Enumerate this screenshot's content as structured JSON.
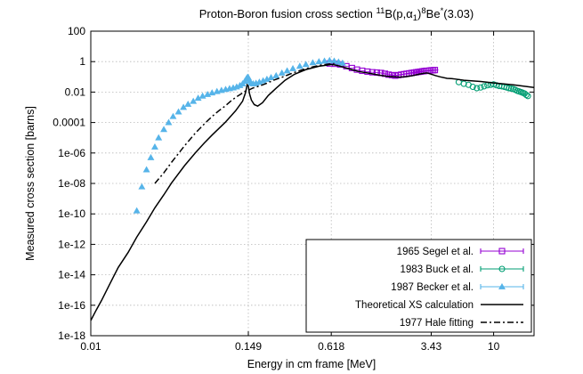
{
  "chart_data": {
    "type": "scatter",
    "title": {
      "prefix": "Proton-Boron fusion cross section ",
      "mass_number": "11",
      "reaction": "B(p,",
      "alpha": "α",
      "alpha_sub": "1",
      "close": ")",
      "product_mass": "8",
      "product": "Be",
      "excited": "*",
      "energy": "(3.03)"
    },
    "xlabel": "Energy in cm frame [MeV]",
    "ylabel": "Measured cross section [barns]",
    "xscale": "log",
    "yscale": "log",
    "xlim": [
      0.01,
      20
    ],
    "ylim": [
      1e-18,
      100
    ],
    "x_ticks": [
      {
        "value": 0.01,
        "label": "0.01"
      },
      {
        "value": 0.149,
        "label": "0.149"
      },
      {
        "value": 0.618,
        "label": "0.618"
      },
      {
        "value": 3.43,
        "label": "3.43"
      },
      {
        "value": 10,
        "label": "10"
      }
    ],
    "y_ticks": [
      {
        "value": 1e-18,
        "label": "1e-18"
      },
      {
        "value": 1e-16,
        "label": "1e-16"
      },
      {
        "value": 1e-14,
        "label": "1e-14"
      },
      {
        "value": 1e-12,
        "label": "1e-12"
      },
      {
        "value": 1e-10,
        "label": "1e-10"
      },
      {
        "value": 1e-08,
        "label": "1e-08"
      },
      {
        "value": 1e-06,
        "label": "1e-06"
      },
      {
        "value": 0.0001,
        "label": "0.0001"
      },
      {
        "value": 0.01,
        "label": "0.01"
      },
      {
        "value": 1,
        "label": "1"
      },
      {
        "value": 100,
        "label": "100"
      }
    ],
    "grid": true,
    "legend_position": "bottom-right",
    "series": [
      {
        "name": "1965 Segel et al.",
        "kind": "markers",
        "marker": "square",
        "color": "#9400d3",
        "x": [
          0.6,
          0.66,
          0.72,
          0.8,
          0.88,
          0.96,
          1.05,
          1.15,
          1.25,
          1.35,
          1.45,
          1.55,
          1.65,
          1.75,
          1.85,
          1.95,
          2.05,
          2.15,
          2.25,
          2.35,
          2.45,
          2.55,
          2.65,
          2.75,
          2.85,
          2.95,
          3.05,
          3.15,
          3.25,
          3.35,
          3.45,
          3.55,
          3.65
        ],
        "y": [
          0.75,
          0.72,
          0.65,
          0.5,
          0.38,
          0.3,
          0.25,
          0.22,
          0.2,
          0.19,
          0.18,
          0.16,
          0.14,
          0.13,
          0.12,
          0.13,
          0.14,
          0.15,
          0.16,
          0.17,
          0.18,
          0.19,
          0.2,
          0.21,
          0.22,
          0.23,
          0.24,
          0.25,
          0.25,
          0.26,
          0.27,
          0.27,
          0.28
        ]
      },
      {
        "name": "1983 Buck et al.",
        "kind": "markers",
        "marker": "circle",
        "color": "#009e73",
        "x": [
          5.5,
          6.0,
          6.5,
          7.0,
          7.5,
          8.0,
          8.5,
          9.0,
          9.5,
          10.0,
          10.5,
          11.0,
          11.5,
          12.0,
          12.5,
          13.0,
          13.5,
          14.0,
          14.5,
          15.0,
          15.5,
          16.0,
          16.5,
          17.0,
          17.5,
          18.0
        ],
        "y": [
          0.045,
          0.035,
          0.03,
          0.022,
          0.018,
          0.02,
          0.024,
          0.028,
          0.03,
          0.032,
          0.028,
          0.025,
          0.024,
          0.022,
          0.02,
          0.018,
          0.017,
          0.016,
          0.014,
          0.012,
          0.011,
          0.01,
          0.009,
          0.008,
          0.0065,
          0.0055
        ]
      },
      {
        "name": "1987 Becker et al.",
        "kind": "markers",
        "marker": "triangle",
        "color": "#56b4e9",
        "x": [
          0.022,
          0.024,
          0.026,
          0.028,
          0.03,
          0.032,
          0.035,
          0.038,
          0.041,
          0.045,
          0.049,
          0.053,
          0.058,
          0.063,
          0.068,
          0.074,
          0.08,
          0.087,
          0.094,
          0.101,
          0.108,
          0.115,
          0.122,
          0.129,
          0.135,
          0.14,
          0.144,
          0.147,
          0.149,
          0.152,
          0.156,
          0.162,
          0.17,
          0.18,
          0.192,
          0.205,
          0.22,
          0.24,
          0.265,
          0.29,
          0.32,
          0.36,
          0.4,
          0.45,
          0.5,
          0.55,
          0.6,
          0.65,
          0.7,
          0.75
        ],
        "y": [
          1.6e-10,
          6e-09,
          8e-08,
          5e-07,
          2.5e-06,
          1e-05,
          3.5e-05,
          0.0001,
          0.00025,
          0.0005,
          0.001,
          0.0016,
          0.0025,
          0.004,
          0.0055,
          0.007,
          0.009,
          0.011,
          0.013,
          0.015,
          0.017,
          0.019,
          0.022,
          0.027,
          0.035,
          0.05,
          0.075,
          0.095,
          0.09,
          0.055,
          0.04,
          0.035,
          0.038,
          0.045,
          0.055,
          0.07,
          0.09,
          0.12,
          0.18,
          0.25,
          0.35,
          0.5,
          0.65,
          0.85,
          1.0,
          1.1,
          1.2,
          1.1,
          0.95,
          0.8
        ]
      },
      {
        "name": "Theoretical XS calculation",
        "kind": "line",
        "dash": "solid",
        "color": "#000000",
        "x": [
          0.01,
          0.011,
          0.012,
          0.014,
          0.016,
          0.019,
          0.022,
          0.026,
          0.03,
          0.035,
          0.04,
          0.05,
          0.06,
          0.07,
          0.08,
          0.1,
          0.12,
          0.135,
          0.142,
          0.146,
          0.149,
          0.152,
          0.157,
          0.165,
          0.175,
          0.19,
          0.21,
          0.24,
          0.28,
          0.33,
          0.4,
          0.5,
          0.6,
          0.618,
          0.66,
          0.72,
          0.8,
          0.9,
          1.0,
          1.2,
          1.4,
          1.6,
          1.8,
          2.0,
          2.2,
          2.5,
          2.8,
          3.0,
          3.2,
          3.43,
          3.7,
          4.0,
          4.5,
          5.0,
          6.0,
          8.0,
          10.0,
          14.0,
          20.0
        ],
        "y": [
          1e-17,
          5e-17,
          2e-16,
          3e-15,
          3e-14,
          3e-13,
          3e-12,
          3e-11,
          2.5e-10,
          1.8e-09,
          1.1e-08,
          1.5e-07,
          1e-06,
          4.5e-06,
          1.5e-05,
          0.0001,
          0.0006,
          0.0025,
          0.009,
          0.03,
          0.025,
          0.008,
          0.003,
          0.0015,
          0.0012,
          0.002,
          0.006,
          0.018,
          0.06,
          0.15,
          0.3,
          0.5,
          0.62,
          0.65,
          0.6,
          0.5,
          0.38,
          0.28,
          0.22,
          0.17,
          0.13,
          0.11,
          0.1,
          0.095,
          0.1,
          0.12,
          0.15,
          0.17,
          0.18,
          0.15,
          0.12,
          0.1,
          0.08,
          0.075,
          0.06,
          0.05,
          0.04,
          0.03,
          0.02
        ]
      },
      {
        "name": "1977 Hale fitting",
        "kind": "line",
        "dash": "dashdot",
        "color": "#000000",
        "x": [
          0.03,
          0.035,
          0.04,
          0.05,
          0.06,
          0.07,
          0.08,
          0.09,
          0.1,
          0.11,
          0.12,
          0.13,
          0.14,
          0.149,
          0.16,
          0.18,
          0.2,
          0.23,
          0.27,
          0.32,
          0.38,
          0.45,
          0.52,
          0.6,
          0.65
        ],
        "y": [
          1e-08,
          5e-08,
          2.5e-07,
          3e-06,
          2e-05,
          8e-05,
          0.00025,
          0.0006,
          0.0012,
          0.0025,
          0.0045,
          0.007,
          0.011,
          0.013,
          0.018,
          0.025,
          0.035,
          0.06,
          0.1,
          0.18,
          0.3,
          0.45,
          0.6,
          0.7,
          0.75
        ]
      }
    ]
  }
}
